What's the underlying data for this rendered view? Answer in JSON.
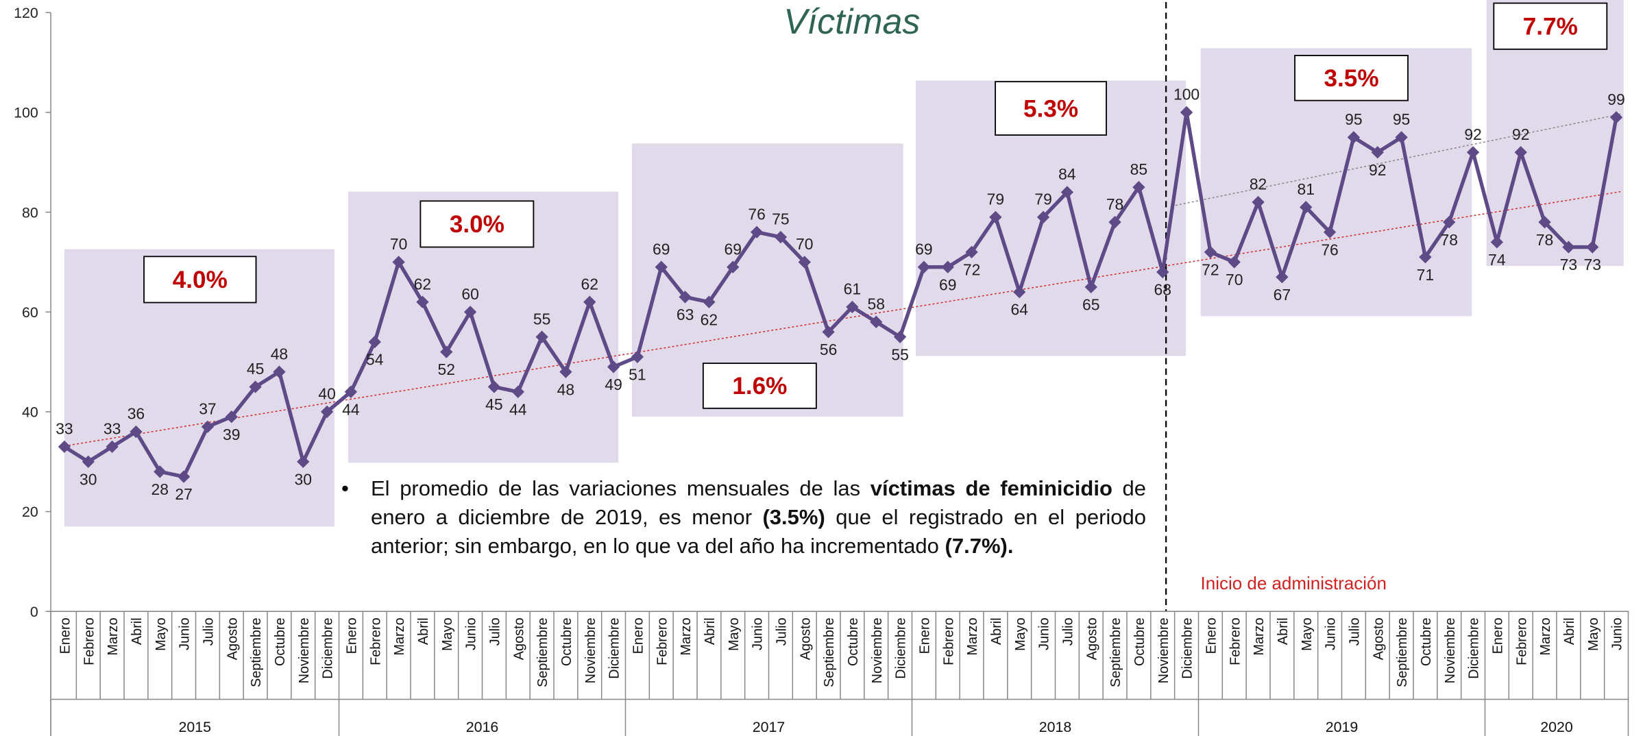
{
  "chart_data": {
    "type": "line",
    "title": "Víctimas",
    "annotation": "Inicio de administración",
    "ylim": [
      0,
      120
    ],
    "yticks": [
      0,
      20,
      40,
      60,
      80,
      100,
      120
    ],
    "color": "#5e4a86",
    "categories": [
      "Enero",
      "Febrero",
      "Marzo",
      "Abril",
      "Mayo",
      "Junio",
      "Julio",
      "Agosto",
      "Septiembre",
      "Octubre",
      "Noviembre",
      "Diciembre",
      "Enero",
      "Febrero",
      "Marzo",
      "Abril",
      "Mayo",
      "Junio",
      "Julio",
      "Agosto",
      "Septiembre",
      "Octubre",
      "Noviembre",
      "Diciembre",
      "Enero",
      "Febrero",
      "Marzo",
      "Abril",
      "Mayo",
      "Junio",
      "Julio",
      "Agosto",
      "Septiembre",
      "Octubre",
      "Noviembre",
      "Diciembre",
      "Enero",
      "Febrero",
      "Marzo",
      "Abril",
      "Mayo",
      "Junio",
      "Julio",
      "Agosto",
      "Septiembre",
      "Octubre",
      "Noviembre",
      "Diciembre",
      "Enero",
      "Febrero",
      "Marzo",
      "Abril",
      "Mayo",
      "Junio",
      "Julio",
      "Agosto",
      "Septiembre",
      "Octubre",
      "Noviembre",
      "Diciembre",
      "Enero",
      "Febrero",
      "Marzo",
      "Abril",
      "Mayo",
      "Junio"
    ],
    "years": [
      "2015",
      "2016",
      "2017",
      "2018",
      "2019",
      "2020"
    ],
    "values": [
      33,
      30,
      33,
      36,
      28,
      27,
      37,
      39,
      45,
      48,
      30,
      40,
      44,
      54,
      70,
      62,
      52,
      60,
      45,
      44,
      55,
      48,
      62,
      49,
      51,
      69,
      63,
      62,
      69,
      76,
      75,
      70,
      56,
      61,
      58,
      55,
      69,
      69,
      72,
      79,
      64,
      79,
      84,
      65,
      78,
      85,
      68,
      100,
      72,
      70,
      82,
      67,
      81,
      76,
      95,
      92,
      95,
      71,
      78,
      92,
      74,
      92,
      78,
      73,
      73,
      99
    ],
    "period_labels": [
      "4.0%",
      "3.0%",
      "1.6%",
      "5.3%",
      "3.5%",
      "7.7%"
    ],
    "note": [
      {
        "text": "El promedio de las variaciones mensuales de las ",
        "bold": false
      },
      {
        "text": "víctimas de feminicidio",
        "bold": true
      },
      {
        "text": " de enero a diciembre de 2019, es menor ",
        "bold": false
      },
      {
        "text": "(3.5%)",
        "bold": true
      },
      {
        "text": " que el registrado en el periodo anterior; sin embargo, en lo que va del año ha incrementado ",
        "bold": false
      },
      {
        "text": "(7.7%).",
        "bold": true
      }
    ]
  }
}
